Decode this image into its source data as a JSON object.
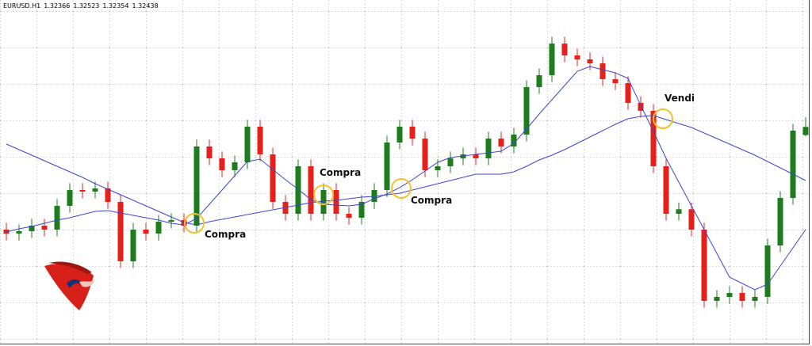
{
  "chart_data": {
    "type": "candlestick",
    "symbol": "EURUSD.H1",
    "open": [
      1.3153,
      1.31495,
      1.31516,
      1.31565,
      1.3153,
      1.3174,
      1.3188,
      1.31866,
      1.31894,
      1.31775,
      1.3125,
      1.3153,
      1.31495,
      1.316,
      1.31614,
      1.31565,
      1.32265,
      1.3216,
      1.32055,
      1.32125,
      1.3244,
      1.32195,
      1.31775,
      1.3167,
      1.3209,
      1.3167,
      1.3188,
      1.3167,
      1.31635,
      1.31775,
      1.3188,
      1.323,
      1.3244,
      1.32335,
      1.32055,
      1.3209,
      1.3216,
      1.32195,
      1.3216,
      1.32335,
      1.32265,
      1.3237,
      1.3279,
      1.32895,
      1.33175,
      1.3307,
      1.33035,
      1.33,
      1.3286,
      1.32825,
      1.3265,
      1.3258,
      1.3209,
      1.3167,
      1.3171,
      1.3153,
      1.309,
      1.30935,
      1.3097,
      1.309,
      1.30935,
      1.3139,
      1.3181,
      1.32366
    ],
    "high": [
      1.3159,
      1.31576,
      1.31625,
      1.31625,
      1.318,
      1.3194,
      1.3194,
      1.31954,
      1.31954,
      1.31835,
      1.3159,
      1.3159,
      1.3166,
      1.31674,
      1.31674,
      1.32325,
      1.32325,
      1.3222,
      1.32185,
      1.325,
      1.325,
      1.32255,
      1.31835,
      1.3215,
      1.3215,
      1.3194,
      1.3194,
      1.3173,
      1.31835,
      1.3194,
      1.3236,
      1.325,
      1.325,
      1.32395,
      1.3215,
      1.3222,
      1.32255,
      1.32255,
      1.32395,
      1.32395,
      1.3243,
      1.3285,
      1.32955,
      1.33235,
      1.33235,
      1.3313,
      1.33095,
      1.3306,
      1.3292,
      1.32885,
      1.3271,
      1.3264,
      1.3215,
      1.3177,
      1.3177,
      1.3159,
      1.30995,
      1.3103,
      1.3103,
      1.30995,
      1.3145,
      1.3187,
      1.32465,
      1.32523
    ],
    "low": [
      1.31435,
      1.31435,
      1.31456,
      1.3147,
      1.3147,
      1.3168,
      1.31806,
      1.31806,
      1.31715,
      1.3119,
      1.3119,
      1.31435,
      1.31435,
      1.3154,
      1.31505,
      1.31505,
      1.321,
      1.31995,
      1.31995,
      1.32065,
      1.32135,
      1.31715,
      1.3161,
      1.3161,
      1.3161,
      1.3161,
      1.3161,
      1.31575,
      1.31575,
      1.31715,
      1.3182,
      1.3224,
      1.32275,
      1.31995,
      1.31995,
      1.3203,
      1.321,
      1.321,
      1.321,
      1.32205,
      1.32205,
      1.3231,
      1.3273,
      1.32835,
      1.3301,
      1.32975,
      1.3294,
      1.328,
      1.32765,
      1.3259,
      1.3252,
      1.3203,
      1.3161,
      1.3161,
      1.3147,
      1.3084,
      1.3084,
      1.30875,
      1.3084,
      1.3084,
      1.30875,
      1.3133,
      1.3175,
      1.32354
    ],
    "close": [
      1.31495,
      1.31516,
      1.31565,
      1.3153,
      1.3174,
      1.3188,
      1.31866,
      1.31894,
      1.31775,
      1.3125,
      1.3153,
      1.31495,
      1.316,
      1.31614,
      1.31565,
      1.32265,
      1.3216,
      1.32055,
      1.32125,
      1.3244,
      1.32195,
      1.31775,
      1.3167,
      1.3209,
      1.3167,
      1.3188,
      1.3167,
      1.31635,
      1.31775,
      1.3188,
      1.323,
      1.3244,
      1.32335,
      1.32055,
      1.3209,
      1.3216,
      1.32195,
      1.3216,
      1.32335,
      1.32265,
      1.3237,
      1.3279,
      1.32895,
      1.33175,
      1.3307,
      1.33035,
      1.33,
      1.3286,
      1.32825,
      1.3265,
      1.3258,
      1.3209,
      1.3167,
      1.3171,
      1.3153,
      1.309,
      1.30935,
      1.3097,
      1.309,
      1.30935,
      1.3139,
      1.3181,
      1.32405,
      1.32438
    ],
    "up_color": "#1e7b1e",
    "down_color": "#e8201c",
    "moving_averages": [
      {
        "color": "#3b46d0",
        "values": [
          1.31509,
          1.31537,
          1.31558,
          1.31586,
          1.31614,
          1.31635,
          1.31663,
          1.31691,
          1.31698,
          1.31677,
          1.31656,
          1.31635,
          1.31614,
          1.31586,
          1.31572,
          1.31628,
          1.31754,
          1.3188,
          1.32006,
          1.32132,
          1.32153,
          1.32062,
          1.31971,
          1.31887,
          1.31796,
          1.31754,
          1.31747,
          1.3174,
          1.31754,
          1.31803,
          1.31845,
          1.31901,
          1.31971,
          1.32048,
          1.32125,
          1.32167,
          1.32181,
          1.32195,
          1.32209,
          1.32223,
          1.32293,
          1.32419,
          1.32552,
          1.32678,
          1.32804,
          1.3293,
          1.32972,
          1.32944,
          1.32916,
          1.32867,
          1.32629,
          1.32398,
          1.3216,
          1.3195,
          1.3174,
          1.3153,
          1.3132,
          1.3111,
          1.31054,
          1.30998,
          1.31047,
          1.31208,
          1.31369,
          1.3153
        ]
      },
      {
        "color": "#3b46d0",
        "values": [
          1.32286,
          1.32237,
          1.32188,
          1.32139,
          1.3209,
          1.32041,
          1.31992,
          1.31936,
          1.31887,
          1.31838,
          1.31789,
          1.3174,
          1.31691,
          1.31642,
          1.31593,
          1.31572,
          1.316,
          1.31621,
          1.31642,
          1.31663,
          1.31684,
          1.31705,
          1.31726,
          1.31747,
          1.31768,
          1.31782,
          1.31789,
          1.31803,
          1.31817,
          1.31824,
          1.31838,
          1.31852,
          1.3188,
          1.31908,
          1.31936,
          1.31964,
          1.31992,
          1.3202,
          1.3202,
          1.3202,
          1.32041,
          1.3209,
          1.32146,
          1.32188,
          1.32237,
          1.32293,
          1.32349,
          1.32405,
          1.32461,
          1.3251,
          1.32531,
          1.32538,
          1.32503,
          1.32468,
          1.32433,
          1.32384,
          1.32335,
          1.32286,
          1.32237,
          1.32188,
          1.32132,
          1.32076,
          1.3202,
          1.31964
        ]
      }
    ],
    "annotations": [
      {
        "text": "Compra"
      },
      {
        "text": "Compra"
      },
      {
        "text": "Compra"
      },
      {
        "text": "Vendi"
      }
    ],
    "annotation_color": "#f2c12e",
    "ylim": [
      1.30501,
      1.3356
    ],
    "grid": true
  }
}
